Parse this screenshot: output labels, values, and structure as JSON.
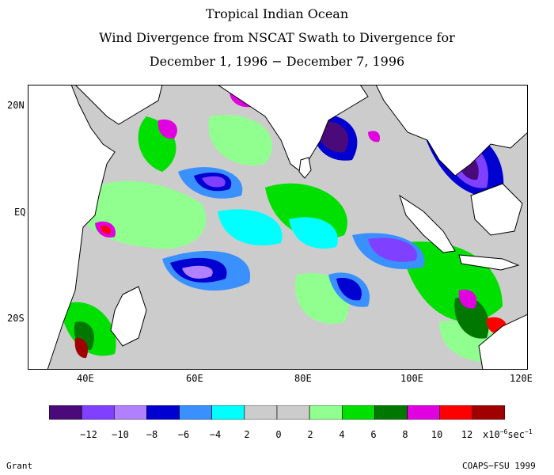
{
  "title": {
    "line1": "Tropical Indian Ocean",
    "line2": "Wind Divergence from NSCAT Swath to Divergence for",
    "line3": "December 1, 1996 − December 7, 1996"
  },
  "axes": {
    "lat_labels": [
      "20N",
      "EQ",
      "20S"
    ],
    "lon_labels": [
      "40E",
      "60E",
      "80E",
      "100E",
      "120E"
    ]
  },
  "legend": {
    "levels": [
      "−12",
      "−10",
      "−8",
      "−6",
      "−4",
      "2",
      "0",
      "2",
      "4",
      "6",
      "8",
      "10",
      "12"
    ],
    "unit_prefix": "x10",
    "unit_exp": "−6",
    "unit_suffix": "sec",
    "unit_suffix_exp": "−1",
    "colors": [
      "#4a0a7a",
      "#8040ff",
      "#b080ff",
      "#0000d0",
      "#3a90ff",
      "#00ffff",
      "#cccccc",
      "#cccccc",
      "#90ff90",
      "#00e000",
      "#007800",
      "#e000e0",
      "#ff0000",
      "#a00000"
    ]
  },
  "footer": {
    "left": "Grant",
    "right": "COAPS−FSU 1999"
  }
}
